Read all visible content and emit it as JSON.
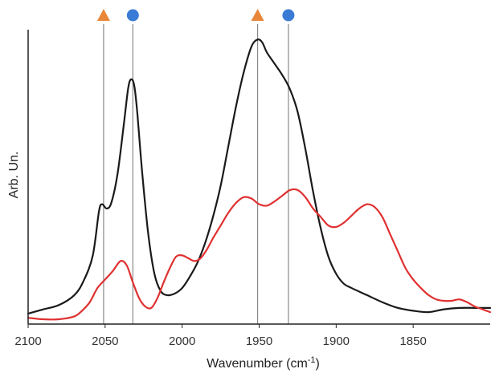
{
  "chart_data": {
    "type": "line",
    "title": "",
    "xlabel": "Wavenumber (cm",
    "xlabel_superscript": "-1",
    "xlabel_suffix": ")",
    "ylabel": "Arb. Un.",
    "x_reversed": true,
    "xlim": [
      2100,
      1800
    ],
    "ylim": [
      0,
      1.0
    ],
    "x_ticks": [
      2100,
      2050,
      2000,
      1950,
      1900,
      1850
    ],
    "x_tick_labels": [
      "2100",
      "2050",
      "2000",
      "1950",
      "1900",
      "1850"
    ],
    "grid": false,
    "legend": "none",
    "reference_lines": [
      {
        "x": 2051,
        "marker": "triangle",
        "color": "#E8873A"
      },
      {
        "x": 2032,
        "marker": "circle",
        "color": "#3A7BD5"
      },
      {
        "x": 1951,
        "marker": "triangle",
        "color": "#E8873A"
      },
      {
        "x": 1931,
        "marker": "circle",
        "color": "#3A7BD5"
      }
    ],
    "series": [
      {
        "color": "#1a1a1a",
        "x": [
          2100,
          2090,
          2080,
          2070,
          2064,
          2058,
          2054,
          2052,
          2049,
          2046,
          2042,
          2038,
          2035,
          2033,
          2031,
          2029,
          2026,
          2022,
          2018,
          2014,
          2010,
          2005,
          2000,
          1995,
          1990,
          1985,
          1980,
          1975,
          1970,
          1965,
          1960,
          1955,
          1951,
          1948,
          1945,
          1940,
          1935,
          1930,
          1925,
          1920,
          1915,
          1910,
          1905,
          1900,
          1895,
          1890,
          1880,
          1870,
          1860,
          1850,
          1840,
          1830,
          1820,
          1810,
          1800
        ],
        "y": [
          0.02,
          0.035,
          0.05,
          0.085,
          0.135,
          0.225,
          0.38,
          0.405,
          0.39,
          0.41,
          0.51,
          0.68,
          0.815,
          0.845,
          0.82,
          0.72,
          0.52,
          0.3,
          0.16,
          0.1,
          0.085,
          0.09,
          0.11,
          0.15,
          0.2,
          0.27,
          0.36,
          0.47,
          0.61,
          0.75,
          0.87,
          0.96,
          0.985,
          0.975,
          0.94,
          0.9,
          0.86,
          0.81,
          0.73,
          0.6,
          0.45,
          0.32,
          0.22,
          0.16,
          0.125,
          0.11,
          0.085,
          0.06,
          0.04,
          0.03,
          0.025,
          0.035,
          0.04,
          0.04,
          0.04
        ]
      },
      {
        "color": "#e03030",
        "x": [
          2100,
          2090,
          2080,
          2070,
          2065,
          2060,
          2055,
          2050,
          2045,
          2040,
          2036,
          2032,
          2028,
          2024,
          2020,
          2016,
          2012,
          2008,
          2004,
          2000,
          1996,
          1992,
          1988,
          1984,
          1980,
          1975,
          1970,
          1965,
          1960,
          1955,
          1950,
          1945,
          1940,
          1935,
          1930,
          1925,
          1920,
          1915,
          1910,
          1905,
          1900,
          1895,
          1890,
          1885,
          1880,
          1875,
          1870,
          1865,
          1860,
          1855,
          1850,
          1845,
          1840,
          1835,
          1830,
          1825,
          1820,
          1815,
          1810,
          1805,
          1800
        ],
        "y": [
          0.005,
          0.0,
          0.0,
          0.01,
          0.03,
          0.06,
          0.11,
          0.14,
          0.17,
          0.205,
          0.19,
          0.13,
          0.075,
          0.045,
          0.04,
          0.075,
          0.13,
          0.18,
          0.22,
          0.225,
          0.215,
          0.205,
          0.215,
          0.245,
          0.285,
          0.33,
          0.375,
          0.41,
          0.43,
          0.425,
          0.405,
          0.4,
          0.415,
          0.435,
          0.455,
          0.455,
          0.43,
          0.39,
          0.36,
          0.33,
          0.325,
          0.34,
          0.365,
          0.39,
          0.405,
          0.395,
          0.36,
          0.3,
          0.24,
          0.18,
          0.14,
          0.11,
          0.085,
          0.07,
          0.065,
          0.065,
          0.07,
          0.06,
          0.045,
          0.035,
          0.025
        ]
      }
    ]
  }
}
